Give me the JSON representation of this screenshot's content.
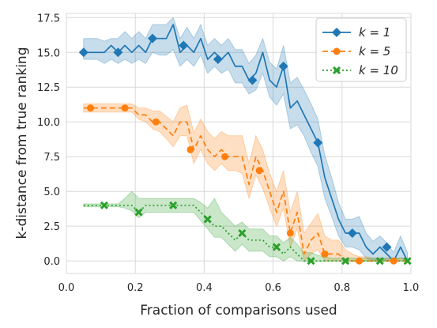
{
  "chart_data": {
    "type": "line",
    "xlabel": "Fraction of comparisons used",
    "ylabel": "k-distance from true ranking",
    "xlim": [
      0.0,
      1.0
    ],
    "ylim": [
      -0.9,
      17.8
    ],
    "xticks": [
      "0.0",
      "0.2",
      "0.4",
      "0.6",
      "0.8",
      "1.0"
    ],
    "yticks": [
      "0.0",
      "2.5",
      "5.0",
      "7.5",
      "10.0",
      "12.5",
      "15.0",
      "17.5"
    ],
    "grid": true,
    "legend_position": "top-right",
    "series": [
      {
        "name": "k = 1",
        "color": "#1f77b4",
        "linestyle": "solid",
        "marker": "diamond",
        "x": [
          0.05,
          0.07,
          0.09,
          0.11,
          0.13,
          0.15,
          0.17,
          0.19,
          0.21,
          0.23,
          0.25,
          0.27,
          0.29,
          0.31,
          0.33,
          0.35,
          0.37,
          0.39,
          0.41,
          0.43,
          0.45,
          0.47,
          0.49,
          0.51,
          0.53,
          0.55,
          0.57,
          0.59,
          0.61,
          0.63,
          0.65,
          0.67,
          0.69,
          0.71,
          0.73,
          0.75,
          0.77,
          0.79,
          0.81,
          0.83,
          0.85,
          0.87,
          0.89,
          0.91,
          0.93,
          0.95,
          0.97,
          0.99
        ],
        "y": [
          15,
          15,
          15,
          15,
          15.5,
          15,
          15.5,
          15,
          15.5,
          15,
          16,
          16,
          16,
          17,
          15,
          15.5,
          15,
          16,
          14.5,
          15,
          14.5,
          15,
          14,
          14,
          13,
          13.5,
          15,
          13,
          12.5,
          14,
          11,
          11.5,
          10.5,
          9.5,
          8.5,
          6,
          4.5,
          3,
          2,
          2,
          2,
          1,
          0.5,
          1,
          0.5,
          0,
          1,
          0
        ],
        "lower": [
          14.5,
          14.5,
          14.5,
          14.2,
          14.5,
          14.2,
          14.5,
          14.2,
          14.5,
          14.2,
          15,
          14.8,
          14.8,
          15.2,
          14,
          14.5,
          14,
          14.8,
          13.5,
          14,
          13.5,
          13.8,
          12.8,
          12.8,
          12,
          12.3,
          13.5,
          11.8,
          11.2,
          12,
          9.5,
          9.8,
          9,
          7.8,
          6.8,
          4.5,
          3.2,
          1.8,
          1,
          1,
          0.8,
          0.2,
          0,
          0.2,
          0,
          0,
          0.2,
          0
        ],
        "upper": [
          16,
          16,
          16,
          15.8,
          16,
          16,
          16.5,
          16,
          16.5,
          16,
          17,
          17,
          17,
          17.5,
          16,
          16.8,
          16,
          17,
          15.5,
          16,
          15.5,
          16,
          15.2,
          15.2,
          14.2,
          14.8,
          16,
          14.3,
          13.8,
          15.5,
          12.8,
          13.2,
          12.3,
          11.3,
          10.2,
          7.6,
          6,
          4.2,
          3,
          3,
          3.2,
          2,
          1.4,
          1.8,
          1.3,
          0.6,
          1.8,
          0.6
        ],
        "marker_x": [
          0.05,
          0.15,
          0.25,
          0.34,
          0.44,
          0.54,
          0.63,
          0.73,
          0.83,
          0.93
        ],
        "marker_y": [
          15,
          15,
          16,
          15.5,
          14.5,
          13,
          14,
          8.5,
          2,
          1
        ]
      },
      {
        "name": "k = 5",
        "color": "#ff7f0e",
        "linestyle": "dashed",
        "marker": "circle",
        "x": [
          0.05,
          0.07,
          0.09,
          0.11,
          0.13,
          0.15,
          0.17,
          0.19,
          0.21,
          0.23,
          0.25,
          0.27,
          0.29,
          0.31,
          0.33,
          0.35,
          0.37,
          0.39,
          0.41,
          0.43,
          0.45,
          0.47,
          0.49,
          0.51,
          0.53,
          0.55,
          0.57,
          0.59,
          0.61,
          0.63,
          0.65,
          0.67,
          0.69,
          0.71,
          0.73,
          0.75,
          0.77,
          0.79,
          0.81,
          0.83,
          0.85,
          0.87,
          0.89,
          0.91,
          0.93,
          0.95,
          0.97,
          0.99
        ],
        "y": [
          11,
          11,
          11,
          11,
          11,
          11,
          11,
          11,
          10.5,
          10.5,
          10,
          10,
          9.5,
          9,
          10,
          10,
          8,
          9,
          8,
          7.5,
          8,
          7.5,
          7.5,
          7.5,
          5.5,
          7.5,
          6.5,
          5,
          3.5,
          5,
          2,
          3.5,
          0.5,
          1.5,
          2,
          0.5,
          0.5,
          0.5,
          0,
          0,
          0,
          0,
          0,
          0,
          0,
          0,
          0,
          0
        ],
        "lower": [
          10.7,
          10.7,
          10.7,
          10.7,
          10.7,
          10.7,
          10.7,
          10.7,
          10.2,
          10,
          9.5,
          9.3,
          8.8,
          8.2,
          9,
          9,
          7,
          8,
          7,
          6.5,
          7,
          6.5,
          6.5,
          6.3,
          4.5,
          6.2,
          5.2,
          3.8,
          2.5,
          3.8,
          1,
          2.3,
          0,
          0.5,
          0.8,
          0,
          0,
          0,
          0,
          0,
          0,
          0,
          0,
          0,
          0,
          0,
          0,
          0
        ],
        "upper": [
          11.3,
          11.3,
          11.3,
          11.3,
          11.3,
          11.3,
          11.3,
          11.3,
          11,
          11,
          10.8,
          10.8,
          10.4,
          10,
          11,
          11.2,
          9.2,
          10.2,
          9.3,
          8.8,
          9.3,
          9,
          9,
          9,
          7,
          9,
          8,
          6.3,
          5,
          6.5,
          3.5,
          5,
          2,
          2.7,
          3.4,
          1.8,
          1.5,
          1.5,
          0.8,
          0.5,
          0.3,
          0.3,
          0.2,
          0.2,
          0.2,
          0.2,
          0.2,
          0.2
        ],
        "marker_x": [
          0.07,
          0.17,
          0.26,
          0.36,
          0.46,
          0.56,
          0.65,
          0.75,
          0.85,
          0.95
        ],
        "marker_y": [
          11,
          11,
          10,
          8,
          7.5,
          6.5,
          2,
          0.5,
          0,
          0
        ]
      },
      {
        "name": "k = 10",
        "color": "#2ca02c",
        "linestyle": "dotted",
        "marker": "x",
        "x": [
          0.05,
          0.07,
          0.09,
          0.11,
          0.13,
          0.15,
          0.17,
          0.19,
          0.21,
          0.23,
          0.25,
          0.27,
          0.29,
          0.31,
          0.33,
          0.35,
          0.37,
          0.39,
          0.41,
          0.43,
          0.45,
          0.47,
          0.49,
          0.51,
          0.53,
          0.55,
          0.57,
          0.59,
          0.61,
          0.63,
          0.65,
          0.67,
          0.69,
          0.71,
          0.73,
          0.75,
          0.77,
          0.79,
          0.81,
          0.83,
          0.85,
          0.87,
          0.89,
          0.91,
          0.93,
          0.95,
          0.97,
          0.99
        ],
        "y": [
          4,
          4,
          4,
          4,
          4,
          4,
          4,
          4,
          3.5,
          4,
          4,
          4,
          4,
          4,
          4,
          4,
          4,
          3.5,
          3,
          2.5,
          2.5,
          2,
          1.5,
          2,
          1.5,
          1.5,
          1.5,
          1,
          1,
          0.5,
          1,
          0.5,
          0,
          0,
          0,
          0,
          0,
          0,
          0,
          0,
          0,
          0,
          0,
          0,
          0,
          0,
          0,
          0
        ],
        "lower": [
          3.9,
          3.9,
          3.9,
          3.9,
          3.9,
          3.9,
          3.8,
          3.6,
          3.1,
          3.5,
          3.5,
          3.5,
          3.5,
          3.5,
          3.5,
          3.5,
          3.5,
          2.9,
          2.3,
          1.7,
          1.7,
          1.2,
          0.7,
          1.2,
          0.7,
          0.7,
          0.7,
          0.3,
          0.3,
          0,
          0.3,
          0,
          0,
          0,
          0,
          0,
          0,
          0,
          0,
          0,
          0,
          0,
          0,
          0,
          0,
          0,
          0,
          0
        ],
        "upper": [
          4.1,
          4.1,
          4.1,
          4.1,
          4.1,
          4.1,
          4.5,
          5,
          4.5,
          4.5,
          4.5,
          4.5,
          4.5,
          4.5,
          4.5,
          4.5,
          4.5,
          4.2,
          3.8,
          4.5,
          3.5,
          3,
          2.5,
          2.8,
          2.3,
          2.3,
          2.3,
          1.8,
          1.8,
          1.3,
          1.7,
          1.2,
          0.6,
          0.6,
          0.4,
          0.3,
          0.2,
          0.2,
          0.2,
          0.2,
          0.2,
          0.2,
          0.2,
          0.2,
          0.2,
          0.2,
          0.2,
          0.2
        ],
        "marker_x": [
          0.11,
          0.21,
          0.31,
          0.41,
          0.51,
          0.61,
          0.71,
          0.81,
          0.91,
          0.99
        ],
        "marker_y": [
          4,
          3.5,
          4,
          3,
          2,
          1,
          0,
          0,
          0,
          0
        ]
      }
    ]
  }
}
